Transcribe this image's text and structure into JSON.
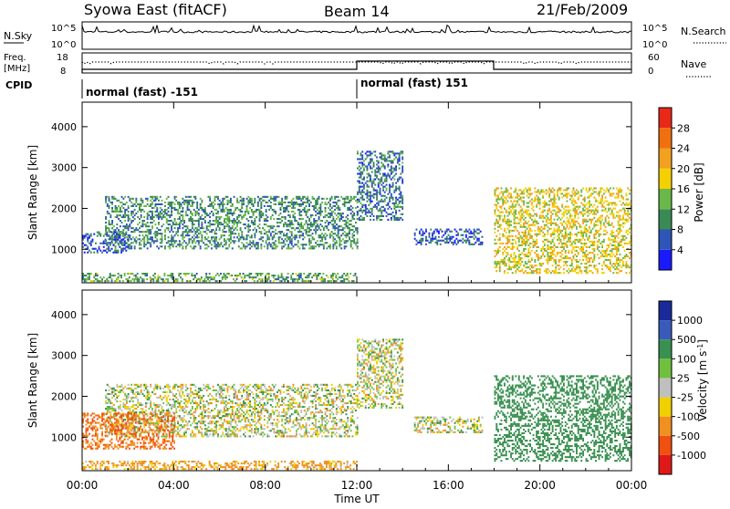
{
  "header": {
    "station": "Syowa East (fitACF)",
    "beam": "Beam 14",
    "date": "21/Feb/2009"
  },
  "small_panels": {
    "nsky_label": "N.Sky",
    "nsky_top_tick": "10^5",
    "nsky_bottom_tick": "10^0",
    "nsearch_label": "N.Search",
    "nsearch_top_tick": "10^5",
    "nsearch_bottom_tick": "10^0",
    "freq_label_line1": "Freq.",
    "freq_label_line2": "[MHz]",
    "freq_top_tick": "18",
    "freq_bottom_tick": "8",
    "nave_label": "Nave",
    "nave_top_tick": "60",
    "nave_bottom_tick": "0",
    "cpid_label": "CPID",
    "cpid_segment_1": "normal (fast) -151",
    "cpid_segment_2": "normal (fast) 151"
  },
  "axes": {
    "ylabel": "Slant Range [km]",
    "xlabel": "Time UT",
    "y_ticks": [
      "1000",
      "2000",
      "3000",
      "4000"
    ],
    "x_ticks": [
      "00:00",
      "04:00",
      "08:00",
      "12:00",
      "16:00",
      "20:00",
      "00:00"
    ]
  },
  "colorbars": {
    "power_label": "Power [dB]",
    "power_ticks": [
      "4",
      "8",
      "12",
      "16",
      "20",
      "24",
      "28"
    ],
    "power_colors": [
      "#1a1aff",
      "#2e55b8",
      "#3a8a55",
      "#6ab84a",
      "#f5d000",
      "#f2a020",
      "#f07010",
      "#e82818"
    ],
    "velocity_label": "Velocity [m s",
    "velocity_sup": "-1",
    "velocity_label_end": "]",
    "velocity_ticks": [
      "1000",
      "500",
      "100",
      "25",
      "-25",
      "-100",
      "-500",
      "-1000"
    ],
    "velocity_colors": [
      "#1a2a9a",
      "#3a5aba",
      "#3a9050",
      "#70c040",
      "#bfbfbf",
      "#f0d000",
      "#f09020",
      "#f05010",
      "#e01818"
    ]
  },
  "chart_data": [
    {
      "type": "heatmap",
      "title": "",
      "parameter": "Power",
      "xlabel": "Time UT",
      "ylabel": "Slant Range [km]",
      "xlim": [
        "00:00",
        "24:00"
      ],
      "ylim": [
        180,
        4600
      ],
      "grid": false,
      "echo_regions": [
        {
          "t_start_h": 1.0,
          "t_end_h": 12.0,
          "range_km": [
            1000,
            2300
          ],
          "dominant_db": 10
        },
        {
          "t_start_h": 0.0,
          "t_end_h": 2.0,
          "range_km": [
            900,
            1400
          ],
          "dominant_db": 6
        },
        {
          "t_start_h": 12.0,
          "t_end_h": 14.0,
          "range_km": [
            1700,
            3400
          ],
          "dominant_db": 8
        },
        {
          "t_start_h": 14.5,
          "t_end_h": 17.5,
          "range_km": [
            1100,
            1500
          ],
          "dominant_db": 6
        },
        {
          "t_start_h": 18.0,
          "t_end_h": 24.0,
          "range_km": [
            400,
            2500
          ],
          "dominant_db": 18
        },
        {
          "t_start_h": 0.0,
          "t_end_h": 12.0,
          "range_km": [
            200,
            400
          ],
          "dominant_db": 12
        }
      ]
    },
    {
      "type": "heatmap",
      "title": "",
      "parameter": "Velocity",
      "xlabel": "Time UT",
      "ylabel": "Slant Range [km]",
      "xlim": [
        "00:00",
        "24:00"
      ],
      "ylim": [
        180,
        4600
      ],
      "grid": false,
      "echo_regions": [
        {
          "t_start_h": 1.0,
          "t_end_h": 12.0,
          "range_km": [
            1000,
            2300
          ],
          "dominant_ms": 0
        },
        {
          "t_start_h": 0.0,
          "t_end_h": 4.0,
          "range_km": [
            700,
            1600
          ],
          "dominant_ms": -300
        },
        {
          "t_start_h": 12.0,
          "t_end_h": 14.0,
          "range_km": [
            1700,
            3400
          ],
          "dominant_ms": 0
        },
        {
          "t_start_h": 14.5,
          "t_end_h": 17.5,
          "range_km": [
            1100,
            1500
          ],
          "dominant_ms": 0
        },
        {
          "t_start_h": 18.0,
          "t_end_h": 24.0,
          "range_km": [
            400,
            2500
          ],
          "dominant_ms": 200
        },
        {
          "t_start_h": 0.0,
          "t_end_h": 12.0,
          "range_km": [
            200,
            400
          ],
          "dominant_ms": -100
        }
      ]
    }
  ]
}
